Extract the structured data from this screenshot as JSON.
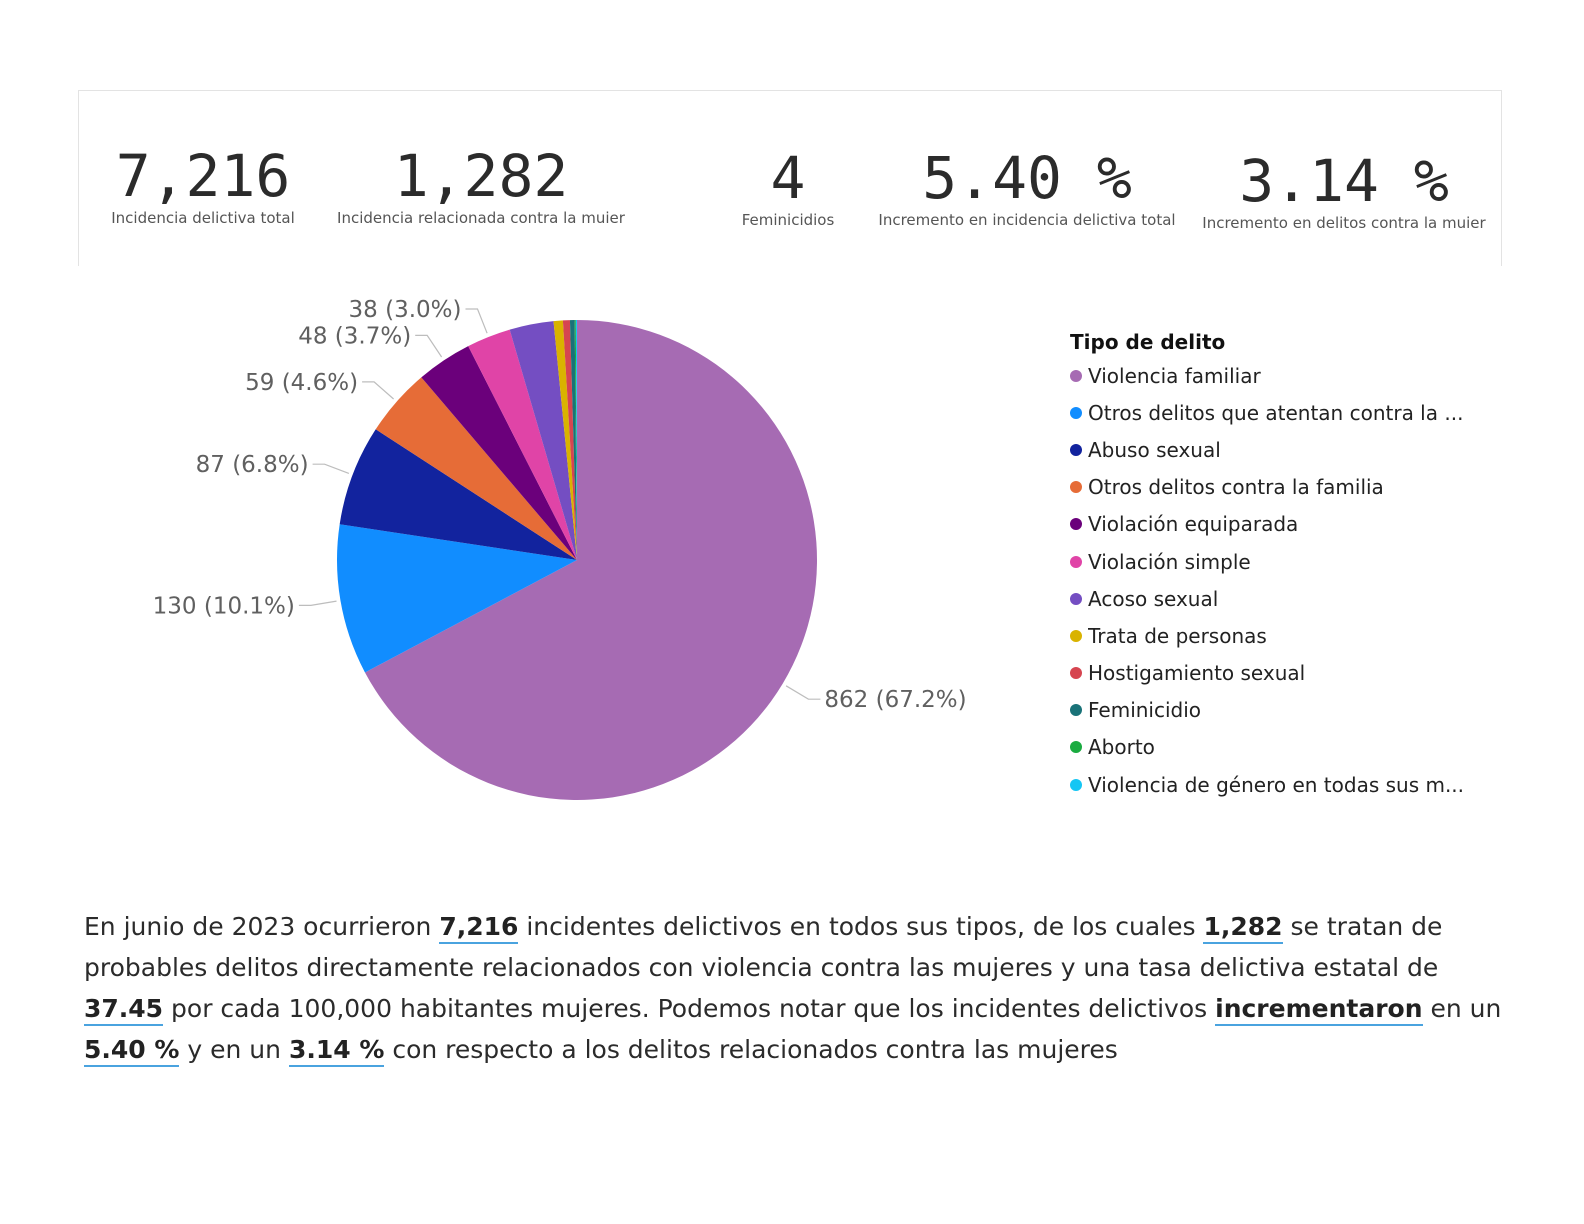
{
  "kpis": [
    {
      "value": "7,216",
      "label": "Incidencia delictiva total"
    },
    {
      "value": "1,282",
      "label": "Incidencia relacionada contra la muier"
    },
    {
      "value": "4",
      "label": "Feminicidios"
    },
    {
      "value": "5.40 %",
      "label": "Incremento en incidencia delictiva total"
    },
    {
      "value": "3.14 %",
      "label": "Incremento en delitos contra la muier"
    }
  ],
  "chart_data": {
    "type": "pie",
    "legend_title": "Tipo de delito",
    "legend_position": "right",
    "slices": [
      {
        "label": "Violencia familiar",
        "value": 862,
        "percent_label": "862 (67.2%)",
        "color": "#A66BB3"
      },
      {
        "label": "Otros delitos que atentan contra la ...",
        "value": 130,
        "percent_label": "130 (10.1%)",
        "color": "#118DFF"
      },
      {
        "label": "Abuso sexual",
        "value": 87,
        "percent_label": "87 (6.8%)",
        "color": "#12239E"
      },
      {
        "label": "Otros delitos contra la familia",
        "value": 59,
        "percent_label": "59 (4.6%)",
        "color": "#E66C37"
      },
      {
        "label": "Violación equiparada",
        "value": 48,
        "percent_label": "48 (3.7%)",
        "color": "#6B007B"
      },
      {
        "label": "Violación simple",
        "value": 38,
        "percent_label": "38 (3.0%)",
        "color": "#E044A7"
      },
      {
        "label": "Acoso sexual",
        "value": 38,
        "percent_label": "",
        "color": "#744EC2"
      },
      {
        "label": "Trata de personas",
        "value": 8,
        "percent_label": "",
        "color": "#D9B300"
      },
      {
        "label": "Hostigamiento sexual",
        "value": 6,
        "percent_label": "",
        "color": "#D64550"
      },
      {
        "label": "Feminicidio",
        "value": 4,
        "percent_label": "",
        "color": "#197278"
      },
      {
        "label": "Aborto",
        "value": 1,
        "percent_label": "",
        "color": "#1AAB40"
      },
      {
        "label": "Violencia de género en todas sus m...",
        "value": 1,
        "percent_label": "",
        "color": "#15C6F4"
      }
    ]
  },
  "summary": {
    "t1": "En junio de 2023 ocurrieron ",
    "b1": "7,216",
    "t2": " incidentes delictivos en todos sus tipos, de los cuales ",
    "b2": "1,282",
    "t3": " se tratan de probables delitos directamente relacionados con violencia contra las mujeres y una tasa delictiva estatal de ",
    "b3": "37.45",
    "t4": " por cada 100,000 habitantes mujeres. Podemos notar que los incidentes delictivos ",
    "b4": "incrementaron",
    "t5": " en un ",
    "b5": "5.40 %",
    "t6": " y en un ",
    "b6": "3.14 %",
    "t7": " con respecto a los delitos relacionados contra las mujeres"
  }
}
